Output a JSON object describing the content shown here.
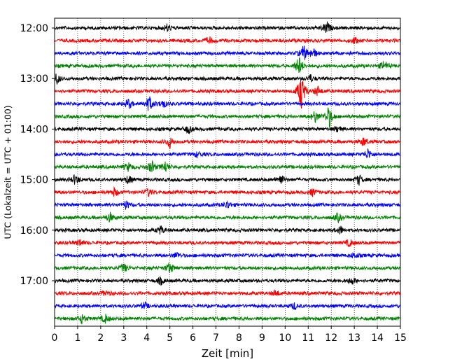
{
  "chart_data": {
    "type": "line",
    "xlabel": "Zeit  [min]",
    "ylabel": "UTC (Lokalzeit = UTC + 01:00)",
    "xlim": [
      0,
      15
    ],
    "x_ticks": [
      0,
      1,
      2,
      3,
      4,
      5,
      6,
      7,
      8,
      9,
      10,
      11,
      12,
      13,
      14,
      15
    ],
    "y_ticks": [
      "12:00",
      "13:00",
      "14:00",
      "15:00",
      "16:00",
      "17:00"
    ],
    "grid": "vertical dotted lines at each minute",
    "trace_interval_minutes": 15,
    "trace_colors": [
      "#000000",
      "#ff0000",
      "#0000ff",
      "#008000"
    ],
    "series": [
      {
        "start": "12:00",
        "color": "#000000",
        "events": [
          {
            "x": 4.9,
            "amp": 1.0
          },
          {
            "x": 11.8,
            "amp": 1.6
          }
        ]
      },
      {
        "start": "12:15",
        "color": "#ff0000",
        "events": [
          {
            "x": 6.7,
            "amp": 0.9
          },
          {
            "x": 13.0,
            "amp": 0.8
          }
        ]
      },
      {
        "start": "12:30",
        "color": "#0000ff",
        "events": [
          {
            "x": 10.8,
            "amp": 2.0
          },
          {
            "x": 11.2,
            "amp": 1.4
          }
        ]
      },
      {
        "start": "12:45",
        "color": "#008000",
        "events": [
          {
            "x": 10.6,
            "amp": 2.4
          },
          {
            "x": 14.3,
            "amp": 1.4
          }
        ]
      },
      {
        "start": "13:00",
        "color": "#000000",
        "events": [
          {
            "x": 0.1,
            "amp": 1.3
          },
          {
            "x": 11.1,
            "amp": 0.9
          }
        ]
      },
      {
        "start": "13:15",
        "color": "#ff0000",
        "events": [
          {
            "x": 10.7,
            "amp": 4.8
          },
          {
            "x": 11.4,
            "amp": 1.2
          }
        ]
      },
      {
        "start": "13:30",
        "color": "#0000ff",
        "events": [
          {
            "x": 3.2,
            "amp": 1.2
          },
          {
            "x": 4.1,
            "amp": 2.0
          },
          {
            "x": 4.7,
            "amp": 1.0
          }
        ]
      },
      {
        "start": "13:45",
        "color": "#008000",
        "events": [
          {
            "x": 11.3,
            "amp": 1.5
          },
          {
            "x": 11.9,
            "amp": 2.8
          }
        ]
      },
      {
        "start": "14:00",
        "color": "#000000",
        "events": [
          {
            "x": 5.8,
            "amp": 1.0
          },
          {
            "x": 12.3,
            "amp": 0.8
          }
        ]
      },
      {
        "start": "14:15",
        "color": "#ff0000",
        "events": [
          {
            "x": 5.0,
            "amp": 1.4
          },
          {
            "x": 13.4,
            "amp": 1.0
          }
        ]
      },
      {
        "start": "14:30",
        "color": "#0000ff",
        "events": [
          {
            "x": 6.2,
            "amp": 0.7
          },
          {
            "x": 13.6,
            "amp": 1.3
          }
        ]
      },
      {
        "start": "14:45",
        "color": "#008000",
        "events": [
          {
            "x": 3.2,
            "amp": 1.0
          },
          {
            "x": 4.2,
            "amp": 1.6
          },
          {
            "x": 4.8,
            "amp": 1.4
          }
        ]
      },
      {
        "start": "15:00",
        "color": "#000000",
        "events": [
          {
            "x": 0.9,
            "amp": 1.3
          },
          {
            "x": 3.2,
            "amp": 1.1
          },
          {
            "x": 9.8,
            "amp": 1.4
          },
          {
            "x": 13.2,
            "amp": 1.3
          }
        ]
      },
      {
        "start": "15:15",
        "color": "#ff0000",
        "events": [
          {
            "x": 2.6,
            "amp": 1.0
          },
          {
            "x": 4.1,
            "amp": 1.0
          },
          {
            "x": 11.2,
            "amp": 0.9
          }
        ]
      },
      {
        "start": "15:30",
        "color": "#0000ff",
        "events": [
          {
            "x": 3.1,
            "amp": 1.0
          },
          {
            "x": 7.5,
            "amp": 0.9
          }
        ]
      },
      {
        "start": "15:45",
        "color": "#008000",
        "events": [
          {
            "x": 2.4,
            "amp": 1.1
          },
          {
            "x": 12.3,
            "amp": 1.1
          }
        ]
      },
      {
        "start": "16:00",
        "color": "#000000",
        "events": [
          {
            "x": 4.6,
            "amp": 1.0
          },
          {
            "x": 12.4,
            "amp": 1.0
          }
        ]
      },
      {
        "start": "16:15",
        "color": "#ff0000",
        "events": [
          {
            "x": 1.1,
            "amp": 0.8
          },
          {
            "x": 12.8,
            "amp": 0.9
          }
        ]
      },
      {
        "start": "16:30",
        "color": "#0000ff",
        "events": [
          {
            "x": 5.3,
            "amp": 0.8
          },
          {
            "x": 13.0,
            "amp": 0.7
          }
        ]
      },
      {
        "start": "16:45",
        "color": "#008000",
        "events": [
          {
            "x": 3.0,
            "amp": 1.1
          },
          {
            "x": 5.0,
            "amp": 1.4
          }
        ]
      },
      {
        "start": "17:00",
        "color": "#000000",
        "events": [
          {
            "x": 4.6,
            "amp": 0.9
          },
          {
            "x": 12.9,
            "amp": 0.9
          }
        ]
      },
      {
        "start": "17:15",
        "color": "#ff0000",
        "events": [
          {
            "x": 2.2,
            "amp": 0.7
          },
          {
            "x": 9.6,
            "amp": 0.8
          }
        ]
      },
      {
        "start": "17:30",
        "color": "#0000ff",
        "events": [
          {
            "x": 3.9,
            "amp": 0.8
          },
          {
            "x": 10.4,
            "amp": 0.8
          }
        ]
      },
      {
        "start": "17:45",
        "color": "#008000",
        "events": [
          {
            "x": 1.2,
            "amp": 1.2
          },
          {
            "x": 2.2,
            "amp": 1.0
          }
        ]
      }
    ]
  }
}
